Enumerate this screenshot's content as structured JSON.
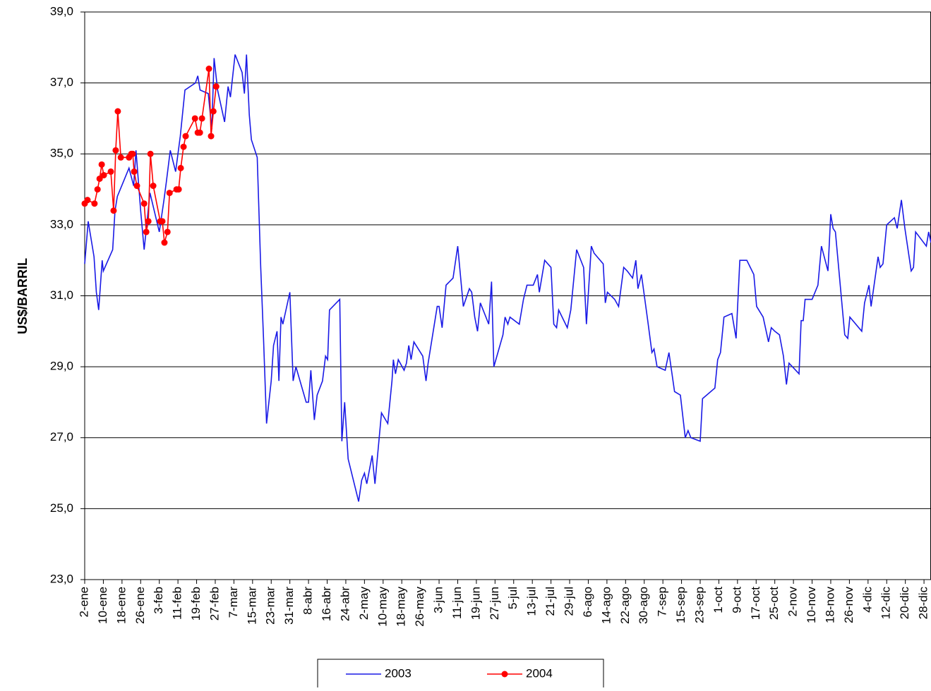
{
  "chart_data": {
    "type": "line",
    "y_label": "US$/BARRIL",
    "xlim": [
      0,
      363
    ],
    "xticks": [
      {
        "value": 0,
        "label": "2-ene"
      },
      {
        "value": 8,
        "label": "10-ene"
      },
      {
        "value": 16,
        "label": "18-ene"
      },
      {
        "value": 24,
        "label": "26-ene"
      },
      {
        "value": 32,
        "label": "3-feb"
      },
      {
        "value": 40,
        "label": "11-feb"
      },
      {
        "value": 48,
        "label": "19-feb"
      },
      {
        "value": 56,
        "label": "27-feb"
      },
      {
        "value": 64,
        "label": "7-mar"
      },
      {
        "value": 72,
        "label": "15-mar"
      },
      {
        "value": 80,
        "label": "23-mar"
      },
      {
        "value": 88,
        "label": "31-mar"
      },
      {
        "value": 96,
        "label": "8-abr"
      },
      {
        "value": 104,
        "label": "16-abr"
      },
      {
        "value": 112,
        "label": "24-abr"
      },
      {
        "value": 120,
        "label": "2-may"
      },
      {
        "value": 128,
        "label": "10-may"
      },
      {
        "value": 136,
        "label": "18-may"
      },
      {
        "value": 144,
        "label": "26-may"
      },
      {
        "value": 152,
        "label": "3-jun"
      },
      {
        "value": 160,
        "label": "11-jun"
      },
      {
        "value": 168,
        "label": "19-jun"
      },
      {
        "value": 176,
        "label": "27-jun"
      },
      {
        "value": 184,
        "label": "5-jul"
      },
      {
        "value": 192,
        "label": "13-jul"
      },
      {
        "value": 200,
        "label": "21-jul"
      },
      {
        "value": 208,
        "label": "29-jul"
      },
      {
        "value": 216,
        "label": "6-ago"
      },
      {
        "value": 224,
        "label": "14-ago"
      },
      {
        "value": 232,
        "label": "22-ago"
      },
      {
        "value": 240,
        "label": "30-ago"
      },
      {
        "value": 248,
        "label": "7-sep"
      },
      {
        "value": 256,
        "label": "15-sep"
      },
      {
        "value": 264,
        "label": "23-sep"
      },
      {
        "value": 272,
        "label": "1-oct"
      },
      {
        "value": 280,
        "label": "9-oct"
      },
      {
        "value": 288,
        "label": "17-oct"
      },
      {
        "value": 296,
        "label": "25-oct"
      },
      {
        "value": 304,
        "label": "2-nov"
      },
      {
        "value": 312,
        "label": "10-nov"
      },
      {
        "value": 320,
        "label": "18-nov"
      },
      {
        "value": 328,
        "label": "26-nov"
      },
      {
        "value": 336,
        "label": "4-dic"
      },
      {
        "value": 344,
        "label": "12-dic"
      },
      {
        "value": 352,
        "label": "20-dic"
      },
      {
        "value": 360,
        "label": "28-dic"
      }
    ],
    "ylim": [
      23,
      39
    ],
    "yticks": [
      {
        "value": 23,
        "label": "23,0"
      },
      {
        "value": 25,
        "label": "25,0"
      },
      {
        "value": 27,
        "label": "27,0"
      },
      {
        "value": 29,
        "label": "29,0"
      },
      {
        "value": 31,
        "label": "31,0"
      },
      {
        "value": 33,
        "label": "33,0"
      },
      {
        "value": 35,
        "label": "35,0"
      },
      {
        "value": 37,
        "label": "37,0"
      },
      {
        "value": 39,
        "label": "39,0"
      }
    ],
    "grid": true,
    "legend": "bottom",
    "series": [
      {
        "name": "2003",
        "color": "#1a1ae6",
        "markers": false,
        "x": [
          0,
          1.5,
          4,
          5,
          6,
          7.5,
          8,
          12,
          13,
          14,
          19,
          21,
          22,
          24,
          25.5,
          28,
          32,
          34,
          35,
          36.7,
          39,
          41,
          43,
          47.5,
          48.5,
          49.5,
          53,
          54.5,
          55.5,
          57,
          60,
          61.5,
          62.5,
          64.5,
          67.5,
          68.5,
          69.4,
          70.6,
          71.5,
          74,
          75.5,
          76.7,
          78,
          80,
          81,
          82.5,
          83.3,
          84.2,
          85,
          88,
          89.4,
          90.6,
          95,
          96,
          97,
          98.5,
          99.7,
          102,
          103.3,
          104.2,
          105,
          109.4,
          110.3,
          111.5,
          113,
          117.5,
          118.8,
          120,
          121,
          123.3,
          124.5,
          127.3,
          130,
          131.8,
          132.4,
          133.3,
          134.5,
          137,
          138,
          139,
          140,
          141.2,
          145,
          146.4,
          147.3,
          151.2,
          152,
          153.3,
          155,
          158,
          160,
          162.4,
          165,
          166,
          167.3,
          168.5,
          169.7,
          173.3,
          174.5,
          175.5,
          179.4,
          180.3,
          181.5,
          182.4,
          186.4,
          188.2,
          189.7,
          192.4,
          194.2,
          195,
          197.3,
          200,
          201.2,
          202.4,
          203.3,
          207,
          208.5,
          211,
          214,
          215.2,
          217.3,
          218.5,
          222.4,
          223.3,
          224.2,
          227.3,
          229,
          231.2,
          232.7,
          235,
          236.4,
          237.3,
          238.8,
          241.5,
          243.3,
          244.2,
          245.5,
          249,
          250.6,
          253,
          255.5,
          257.6,
          258.8,
          260,
          264,
          265,
          270.3,
          271.5,
          272.7,
          274.2,
          277.6,
          279.4,
          281,
          284,
          285.5,
          287,
          288.2,
          291,
          293.3,
          294.5,
          296,
          298,
          299.7,
          301,
          302.1,
          305,
          306.4,
          307.3,
          308.2,
          309,
          312,
          314.5,
          316,
          318.8,
          320,
          321,
          322,
          326,
          327.3,
          328.2,
          333.3,
          334.5,
          336.4,
          337.3,
          340.3,
          341.2,
          342.4,
          344,
          347.3,
          348.5,
          350.3,
          351.8,
          354.5,
          355.5,
          356.4,
          361,
          362,
          363
        ],
        "values": [
          31.9,
          33.1,
          32.1,
          31.1,
          30.6,
          32.0,
          31.7,
          32.3,
          33.4,
          33.8,
          34.6,
          34.1,
          35.1,
          33.4,
          32.3,
          33.9,
          32.8,
          33.7,
          34.2,
          35.1,
          34.5,
          35.5,
          36.8,
          37.0,
          37.2,
          36.8,
          36.7,
          35.7,
          37.7,
          36.8,
          35.9,
          36.9,
          36.6,
          37.8,
          37.3,
          36.7,
          37.8,
          36.1,
          35.4,
          34.9,
          31.8,
          29.8,
          27.4,
          28.6,
          29.6,
          30.0,
          28.6,
          30.4,
          30.2,
          31.1,
          28.6,
          29.0,
          28.0,
          28.0,
          28.9,
          27.5,
          28.2,
          28.6,
          29.3,
          29.2,
          30.6,
          30.9,
          26.9,
          28.0,
          26.4,
          25.2,
          25.8,
          26.0,
          25.7,
          26.5,
          25.7,
          27.7,
          27.4,
          28.6,
          29.2,
          28.8,
          29.2,
          28.9,
          29.1,
          29.6,
          29.2,
          29.7,
          29.3,
          28.6,
          29.1,
          30.7,
          30.7,
          30.1,
          31.3,
          31.5,
          32.4,
          30.7,
          31.2,
          31.1,
          30.4,
          30.0,
          30.8,
          30.2,
          31.4,
          29.0,
          29.9,
          30.4,
          30.2,
          30.4,
          30.2,
          30.9,
          31.3,
          31.3,
          31.6,
          31.1,
          32.0,
          31.8,
          30.2,
          30.1,
          30.6,
          30.1,
          30.6,
          32.3,
          31.8,
          30.2,
          32.4,
          32.2,
          31.9,
          30.8,
          31.1,
          30.9,
          30.7,
          31.8,
          31.7,
          31.5,
          32.0,
          31.2,
          31.6,
          30.3,
          29.4,
          29.5,
          29.0,
          28.9,
          29.4,
          28.3,
          28.2,
          27.0,
          27.2,
          27.0,
          26.9,
          28.1,
          28.4,
          29.2,
          29.4,
          30.4,
          30.5,
          29.8,
          32.0,
          32.0,
          31.8,
          31.6,
          30.7,
          30.4,
          29.7,
          30.1,
          30.0,
          29.9,
          29.3,
          28.5,
          29.1,
          28.9,
          28.8,
          30.3,
          30.3,
          30.9,
          30.9,
          31.3,
          32.4,
          31.7,
          33.3,
          32.9,
          32.8,
          29.9,
          29.8,
          30.4,
          30.0,
          30.8,
          31.3,
          30.7,
          32.1,
          31.8,
          31.9,
          33.0,
          33.2,
          32.9,
          33.7,
          32.9,
          31.7,
          31.8,
          32.8,
          32.4,
          32.8,
          32.5
        ]
      },
      {
        "name": "2004",
        "color": "#ff0000",
        "markers": true,
        "x": [
          0,
          1.2,
          4.2,
          5.5,
          6.4,
          7.3,
          8.2,
          11.2,
          12.4,
          13.3,
          14.2,
          15.5,
          19,
          20,
          20.6,
          21.2,
          22.4,
          25.5,
          26.4,
          27.3,
          28.2,
          29.4,
          32.4,
          33.3,
          34.2,
          35.5,
          36.4,
          39.4,
          40.3,
          41.2,
          42.4,
          43.3,
          47.3,
          48.5,
          49.4,
          50.3,
          53.3,
          54.2,
          55.2,
          56.4
        ],
        "values": [
          33.6,
          33.7,
          33.6,
          34.0,
          34.3,
          34.7,
          34.4,
          34.5,
          33.4,
          35.1,
          36.2,
          34.9,
          34.9,
          35.0,
          35.0,
          34.5,
          34.1,
          33.6,
          32.8,
          33.1,
          35.0,
          34.1,
          33.1,
          33.1,
          32.5,
          32.8,
          33.9,
          34.0,
          34.0,
          34.6,
          35.2,
          35.5,
          36.0,
          35.6,
          35.6,
          36.0,
          37.4,
          35.5,
          36.2,
          36.9
        ]
      }
    ]
  }
}
